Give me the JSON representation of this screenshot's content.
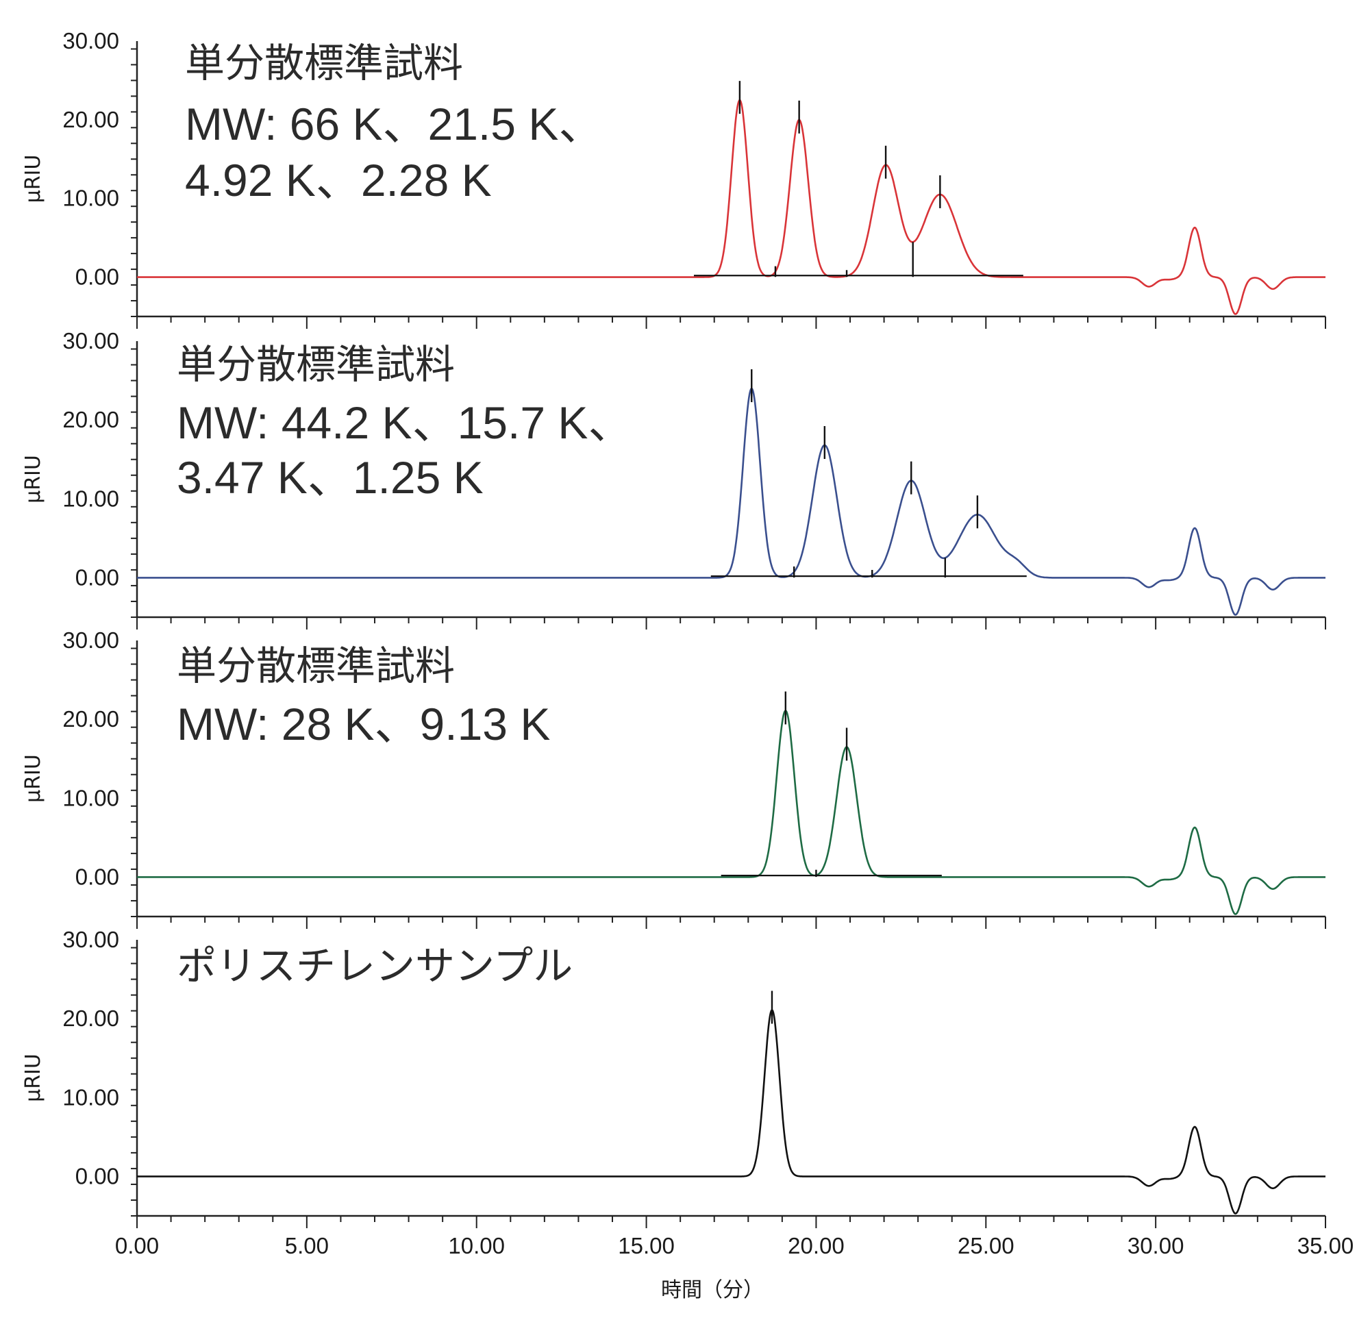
{
  "chart_data": {
    "type": "line",
    "xlabel": "時間（分）",
    "xlim": [
      0,
      35
    ],
    "x_ticks": [
      "0.00",
      "5.00",
      "10.00",
      "15.00",
      "20.00",
      "25.00",
      "30.00",
      "35.00"
    ],
    "system_peaks": [
      {
        "x": 29.8,
        "y": -1.2
      },
      {
        "x": 30.4,
        "y": -0.3
      },
      {
        "x": 31.15,
        "y": 6.3
      },
      {
        "x": 32.35,
        "y": -4.7
      },
      {
        "x": 33.45,
        "y": -1.5
      }
    ],
    "panels": [
      {
        "ylabel": "µRIU",
        "ylim": [
          -5,
          30
        ],
        "y_ticks": [
          "30.00",
          "20.00",
          "10.00",
          "0.00"
        ],
        "color": "#d93438",
        "annotations": [
          "単分散標準試料",
          "MW: 66 K、21.5 K、",
          "4.92 K、2.28 K"
        ],
        "series": [
          {
            "peaks": [
              {
                "x": 17.75,
                "y": 22.5,
                "sigma": 0.24
              },
              {
                "x": 19.5,
                "y": 20.0,
                "sigma": 0.27
              },
              {
                "x": 22.05,
                "y": 14.2,
                "sigma": 0.38
              },
              {
                "x": 23.65,
                "y": 10.5,
                "sigma": 0.5
              }
            ],
            "peak_markers": [
              17.75,
              19.5,
              22.05,
              23.65
            ],
            "valley_markers": [
              18.8,
              20.9,
              22.85
            ],
            "baseline": [
              16.4,
              26.1
            ]
          }
        ]
      },
      {
        "ylabel": "µRIU",
        "ylim": [
          -5,
          30
        ],
        "y_ticks": [
          "30.00",
          "20.00",
          "10.00",
          "0.00"
        ],
        "color": "#3a4f8e",
        "annotations": [
          "単分散標準試料",
          "MW: 44.2 K、15.7 K、",
          "3.47 K、1.25 K"
        ],
        "series": [
          {
            "peaks": [
              {
                "x": 18.1,
                "y": 24.0,
                "sigma": 0.25
              },
              {
                "x": 20.25,
                "y": 16.8,
                "sigma": 0.36
              },
              {
                "x": 22.8,
                "y": 12.3,
                "sigma": 0.42
              },
              {
                "x": 24.75,
                "y": 8.0,
                "sigma": 0.55
              },
              {
                "x": 25.9,
                "y": 1.5,
                "sigma": 0.3
              }
            ],
            "peak_markers": [
              18.1,
              20.25,
              22.8,
              24.75
            ],
            "valley_markers": [
              19.35,
              21.65,
              23.8
            ],
            "baseline": [
              16.9,
              26.2
            ]
          }
        ]
      },
      {
        "ylabel": "µRIU",
        "ylim": [
          -5,
          30
        ],
        "y_ticks": [
          "30.00",
          "20.00",
          "10.00",
          "0.00"
        ],
        "color": "#1e6b44",
        "annotations": [
          "単分散標準試料",
          "MW: 28 K、9.13 K"
        ],
        "series": [
          {
            "peaks": [
              {
                "x": 19.1,
                "y": 21.1,
                "sigma": 0.26
              },
              {
                "x": 20.9,
                "y": 16.5,
                "sigma": 0.3
              }
            ],
            "peak_markers": [
              19.1,
              20.9
            ],
            "valley_markers": [
              20.0
            ],
            "baseline": [
              17.2,
              23.7
            ]
          }
        ]
      },
      {
        "ylabel": "µRIU",
        "ylim": [
          -5,
          30
        ],
        "y_ticks": [
          "30.00",
          "20.00",
          "10.00",
          "0.00"
        ],
        "color": "#111111",
        "annotations": [
          "ポリスチレンサンプル"
        ],
        "series": [
          {
            "peaks": [
              {
                "x": 18.7,
                "y": 21.1,
                "sigma": 0.22
              }
            ],
            "peak_markers": [
              18.7
            ],
            "valley_markers": [],
            "baseline": []
          }
        ]
      }
    ]
  }
}
